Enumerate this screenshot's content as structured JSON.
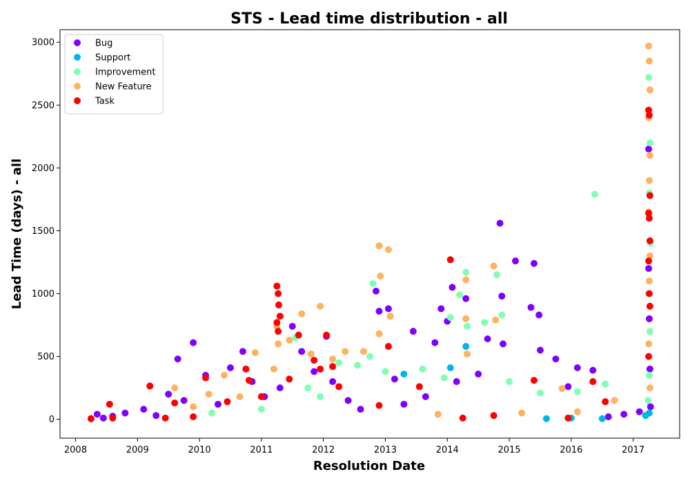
{
  "chart_data": {
    "type": "scatter",
    "title": "STS - Lead time distribution - all",
    "xlabel": "Resolution Date",
    "ylabel": "Lead Time (days) - all",
    "xlim": [
      2007.75,
      2017.75
    ],
    "ylim": [
      -150,
      3100
    ],
    "x_ticks": [
      2008,
      2009,
      2010,
      2011,
      2012,
      2013,
      2014,
      2015,
      2016,
      2017
    ],
    "y_ticks": [
      0,
      500,
      1000,
      1500,
      2000,
      2500,
      3000
    ],
    "grid": false,
    "legend_position": "top-left",
    "series": [
      {
        "name": "Bug",
        "color": "#8000ff",
        "points": [
          [
            2008.25,
            5
          ],
          [
            2008.35,
            40
          ],
          [
            2008.45,
            10
          ],
          [
            2008.6,
            25
          ],
          [
            2008.8,
            50
          ],
          [
            2009.1,
            80
          ],
          [
            2009.3,
            30
          ],
          [
            2009.5,
            200
          ],
          [
            2009.65,
            480
          ],
          [
            2009.9,
            610
          ],
          [
            2009.75,
            150
          ],
          [
            2010.1,
            350
          ],
          [
            2010.3,
            120
          ],
          [
            2010.5,
            410
          ],
          [
            2010.7,
            540
          ],
          [
            2010.85,
            300
          ],
          [
            2011.05,
            180
          ],
          [
            2011.3,
            250
          ],
          [
            2011.5,
            740
          ],
          [
            2011.65,
            540
          ],
          [
            2011.85,
            380
          ],
          [
            2012.05,
            660
          ],
          [
            2012.15,
            300
          ],
          [
            2012.4,
            150
          ],
          [
            2012.6,
            80
          ],
          [
            2012.85,
            1020
          ],
          [
            2012.9,
            860
          ],
          [
            2013.05,
            880
          ],
          [
            2013.15,
            320
          ],
          [
            2013.3,
            120
          ],
          [
            2013.45,
            700
          ],
          [
            2013.65,
            180
          ],
          [
            2013.8,
            610
          ],
          [
            2013.9,
            880
          ],
          [
            2014.0,
            780
          ],
          [
            2014.08,
            1050
          ],
          [
            2014.15,
            300
          ],
          [
            2014.3,
            960
          ],
          [
            2014.5,
            360
          ],
          [
            2014.65,
            640
          ],
          [
            2014.85,
            1560
          ],
          [
            2014.88,
            980
          ],
          [
            2014.9,
            600
          ],
          [
            2015.1,
            1260
          ],
          [
            2015.35,
            890
          ],
          [
            2015.4,
            1240
          ],
          [
            2015.48,
            830
          ],
          [
            2015.5,
            550
          ],
          [
            2015.75,
            480
          ],
          [
            2015.95,
            260
          ],
          [
            2016.1,
            410
          ],
          [
            2016.35,
            390
          ],
          [
            2016.6,
            20
          ],
          [
            2016.85,
            40
          ],
          [
            2017.1,
            60
          ],
          [
            2017.25,
            2150
          ],
          [
            2017.26,
            800
          ],
          [
            2017.27,
            400
          ],
          [
            2017.28,
            100
          ],
          [
            2017.25,
            1200
          ]
        ]
      },
      {
        "name": "Support",
        "color": "#00b5eb",
        "points": [
          [
            2013.3,
            360
          ],
          [
            2014.05,
            410
          ],
          [
            2014.3,
            580
          ],
          [
            2016.0,
            10
          ],
          [
            2017.2,
            30
          ],
          [
            2017.26,
            50
          ],
          [
            2015.6,
            5
          ],
          [
            2016.5,
            5
          ]
        ]
      },
      {
        "name": "Improvement",
        "color": "#80ffb4",
        "points": [
          [
            2010.2,
            50
          ],
          [
            2011.0,
            80
          ],
          [
            2011.55,
            650
          ],
          [
            2011.75,
            250
          ],
          [
            2011.95,
            180
          ],
          [
            2012.25,
            450
          ],
          [
            2012.55,
            430
          ],
          [
            2012.75,
            500
          ],
          [
            2012.8,
            1080
          ],
          [
            2013.0,
            380
          ],
          [
            2013.6,
            400
          ],
          [
            2013.95,
            330
          ],
          [
            2014.05,
            810
          ],
          [
            2014.2,
            990
          ],
          [
            2014.3,
            1170
          ],
          [
            2014.32,
            740
          ],
          [
            2014.6,
            770
          ],
          [
            2014.8,
            1150
          ],
          [
            2014.88,
            830
          ],
          [
            2015.0,
            300
          ],
          [
            2015.5,
            210
          ],
          [
            2016.1,
            220
          ],
          [
            2016.38,
            1790
          ],
          [
            2016.55,
            280
          ],
          [
            2017.25,
            2720
          ],
          [
            2017.27,
            2200
          ],
          [
            2017.26,
            1800
          ],
          [
            2017.28,
            1400
          ],
          [
            2017.25,
            1000
          ],
          [
            2017.27,
            700
          ],
          [
            2017.26,
            350
          ],
          [
            2017.24,
            150
          ]
        ]
      },
      {
        "name": "New Feature",
        "color": "#ffb360",
        "points": [
          [
            2009.6,
            250
          ],
          [
            2009.9,
            100
          ],
          [
            2010.15,
            200
          ],
          [
            2010.4,
            350
          ],
          [
            2010.65,
            180
          ],
          [
            2010.9,
            530
          ],
          [
            2011.2,
            400
          ],
          [
            2011.25,
            740
          ],
          [
            2011.27,
            600
          ],
          [
            2011.45,
            630
          ],
          [
            2011.65,
            840
          ],
          [
            2011.8,
            520
          ],
          [
            2011.95,
            900
          ],
          [
            2012.15,
            480
          ],
          [
            2012.35,
            540
          ],
          [
            2012.65,
            540
          ],
          [
            2012.9,
            1380
          ],
          [
            2012.92,
            1140
          ],
          [
            2012.9,
            680
          ],
          [
            2013.05,
            1350
          ],
          [
            2013.08,
            820
          ],
          [
            2013.85,
            40
          ],
          [
            2014.3,
            1110
          ],
          [
            2014.3,
            800
          ],
          [
            2014.32,
            520
          ],
          [
            2014.75,
            1220
          ],
          [
            2014.78,
            790
          ],
          [
            2015.2,
            50
          ],
          [
            2015.85,
            245
          ],
          [
            2016.1,
            60
          ],
          [
            2016.7,
            150
          ],
          [
            2017.25,
            2970
          ],
          [
            2017.26,
            2850
          ],
          [
            2017.27,
            2620
          ],
          [
            2017.25,
            2400
          ],
          [
            2017.27,
            2100
          ],
          [
            2017.26,
            1900
          ],
          [
            2017.25,
            1650
          ],
          [
            2017.27,
            1300
          ],
          [
            2017.26,
            1100
          ],
          [
            2017.25,
            600
          ],
          [
            2017.27,
            250
          ]
        ]
      },
      {
        "name": "Task",
        "color": "#ff0000",
        "points": [
          [
            2008.25,
            5
          ],
          [
            2008.55,
            120
          ],
          [
            2008.6,
            10
          ],
          [
            2009.2,
            265
          ],
          [
            2009.45,
            10
          ],
          [
            2009.6,
            130
          ],
          [
            2009.9,
            20
          ],
          [
            2010.1,
            330
          ],
          [
            2010.45,
            140
          ],
          [
            2010.75,
            400
          ],
          [
            2010.8,
            310
          ],
          [
            2011.0,
            180
          ],
          [
            2011.25,
            1060
          ],
          [
            2011.27,
            1000
          ],
          [
            2011.28,
            910
          ],
          [
            2011.3,
            820
          ],
          [
            2011.25,
            770
          ],
          [
            2011.27,
            700
          ],
          [
            2011.45,
            320
          ],
          [
            2011.6,
            670
          ],
          [
            2011.85,
            470
          ],
          [
            2011.95,
            400
          ],
          [
            2012.05,
            670
          ],
          [
            2012.15,
            420
          ],
          [
            2012.25,
            260
          ],
          [
            2012.9,
            110
          ],
          [
            2013.05,
            580
          ],
          [
            2013.55,
            260
          ],
          [
            2014.05,
            1270
          ],
          [
            2014.25,
            10
          ],
          [
            2014.75,
            30
          ],
          [
            2015.4,
            310
          ],
          [
            2015.95,
            10
          ],
          [
            2016.35,
            300
          ],
          [
            2016.55,
            140
          ],
          [
            2017.25,
            2460
          ],
          [
            2017.26,
            2420
          ],
          [
            2017.27,
            1780
          ],
          [
            2017.25,
            1640
          ],
          [
            2017.26,
            1600
          ],
          [
            2017.27,
            1420
          ],
          [
            2017.25,
            1260
          ],
          [
            2017.26,
            1000
          ],
          [
            2017.27,
            900
          ],
          [
            2017.25,
            500
          ]
        ]
      }
    ]
  }
}
